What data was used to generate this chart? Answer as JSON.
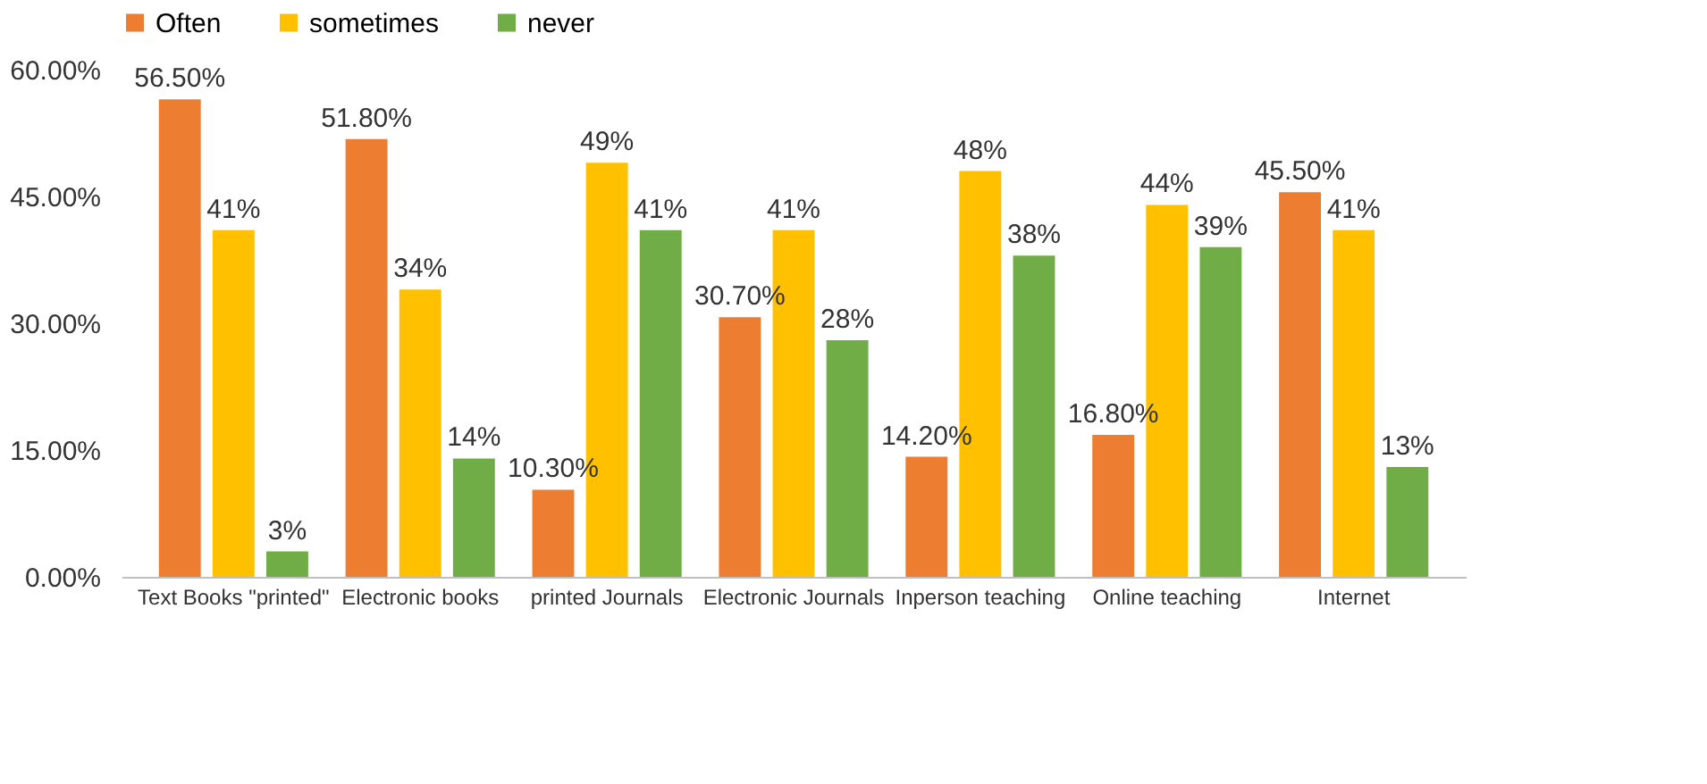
{
  "chart_data": {
    "type": "bar",
    "categories": [
      "Text Books \"printed\"",
      "Electronic books",
      "printed Journals",
      "Electronic Journals",
      "Inperson teaching",
      "Online teaching",
      "Internet"
    ],
    "series": [
      {
        "name": "Often",
        "color": "#ed7d31",
        "values": [
          56.5,
          51.8,
          10.3,
          30.7,
          14.2,
          16.8,
          45.5
        ],
        "value_labels": [
          "56.50%",
          "51.80%",
          "10.30%",
          "30.70%",
          "14.20%",
          "16.80%",
          "45.50%"
        ]
      },
      {
        "name": "sometimes",
        "color": "#ffc000",
        "values": [
          41,
          34,
          49,
          41,
          48,
          44,
          41
        ],
        "value_labels": [
          "41%",
          "34%",
          "49%",
          "41%",
          "48%",
          "44%",
          "41%"
        ]
      },
      {
        "name": "never",
        "color": "#70ad47",
        "values": [
          3,
          14,
          41,
          28,
          38,
          39,
          13
        ],
        "value_labels": [
          "3%",
          "14%",
          "41%",
          "28%",
          "38%",
          "39%",
          "13%"
        ]
      }
    ],
    "ylim": [
      0,
      60
    ],
    "yticks": [
      {
        "value": 0,
        "label": "0.00%"
      },
      {
        "value": 15,
        "label": "15.00%"
      },
      {
        "value": 30,
        "label": "30.00%"
      },
      {
        "value": 45,
        "label": "45.00%"
      },
      {
        "value": 60,
        "label": "60.00%"
      }
    ],
    "grid": false,
    "legend": "top"
  }
}
